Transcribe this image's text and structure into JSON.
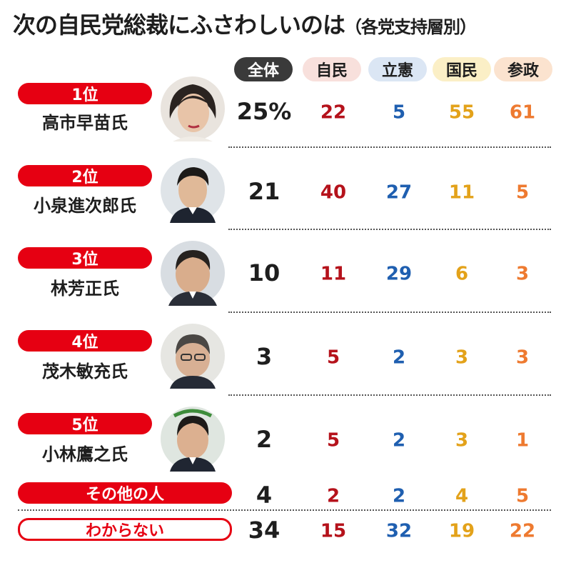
{
  "title": {
    "main": "次の自民党総裁にふさわしいのは",
    "sub": "（各党支持層別）"
  },
  "colors": {
    "rank_red": "#e60012",
    "overall": "#1e1e1e",
    "jimin": "#b5121b",
    "rikken": "#1f5fb0",
    "kokumin": "#e3a21a",
    "sansei": "#ee7a30"
  },
  "header_chip_colors": {
    "overall": "#3a3a3a",
    "jimin": "#f8e0dc",
    "rikken": "#dbe6f4",
    "kokumin": "#fbefc6",
    "sansei": "#fbe3cf"
  },
  "rows": [
    {
      "rank": "1位",
      "name": "高市早苗氏"
    },
    {
      "rank": "2位",
      "name": "小泉進次郎氏"
    },
    {
      "rank": "3位",
      "name": "林芳正氏"
    },
    {
      "rank": "4位",
      "name": "茂木敏充氏"
    },
    {
      "rank": "5位",
      "name": "小林鷹之氏"
    }
  ],
  "other": "その他の人",
  "unknown": "わからない",
  "chart_data": {
    "type": "table",
    "columns": [
      "全体",
      "自民",
      "立憲",
      "国民",
      "参政"
    ],
    "first_value_suffix": "%",
    "rows": [
      {
        "label": "高市早苗氏",
        "values": [
          25,
          22,
          5,
          55,
          61
        ]
      },
      {
        "label": "小泉進次郎氏",
        "values": [
          21,
          40,
          27,
          11,
          5
        ]
      },
      {
        "label": "林芳正氏",
        "values": [
          10,
          11,
          29,
          6,
          3
        ]
      },
      {
        "label": "茂木敏充氏",
        "values": [
          3,
          5,
          2,
          3,
          3
        ]
      },
      {
        "label": "小林鷹之氏",
        "values": [
          2,
          5,
          2,
          3,
          1
        ]
      },
      {
        "label": "その他の人",
        "values": [
          4,
          2,
          2,
          4,
          5
        ]
      },
      {
        "label": "わからない",
        "values": [
          34,
          15,
          32,
          19,
          22
        ]
      }
    ]
  }
}
